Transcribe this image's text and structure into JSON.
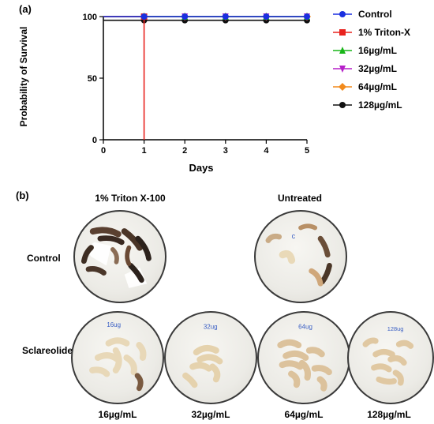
{
  "panel_a_label": "(a)",
  "panel_b_label": "(b)",
  "chart_data": {
    "type": "line",
    "xlabel": "Days",
    "ylabel": "Probability of Survival",
    "xlim": [
      0,
      5
    ],
    "ylim": [
      0,
      100
    ],
    "xticks": [
      "0",
      "1",
      "2",
      "3",
      "4",
      "5"
    ],
    "yticks": [
      "0",
      "50",
      "100"
    ],
    "legend_position": "right",
    "grid": false,
    "series": [
      {
        "name": "Control",
        "color": "#1a2fe0",
        "marker": "circle",
        "x": [
          0,
          1,
          2,
          3,
          4,
          5
        ],
        "y": [
          100,
          100,
          100,
          100,
          100,
          100
        ]
      },
      {
        "name": "1% Triton-X",
        "color": "#e8231e",
        "marker": "square",
        "x": [
          0,
          1,
          1
        ],
        "y": [
          100,
          100,
          0
        ]
      },
      {
        "name": "16µg/mL",
        "color": "#19b519",
        "marker": "triangle-up",
        "x": [
          0,
          1,
          2,
          3,
          4,
          5
        ],
        "y": [
          100,
          100,
          100,
          100,
          100,
          100
        ]
      },
      {
        "name": "32µg/mL",
        "color": "#b51fc9",
        "marker": "triangle-down",
        "x": [
          0,
          1,
          2,
          3,
          4,
          5
        ],
        "y": [
          100,
          100,
          100,
          100,
          100,
          100
        ]
      },
      {
        "name": "64µg/mL",
        "color": "#f28a1c",
        "marker": "diamond",
        "x": [
          0,
          1,
          2,
          3,
          4,
          5
        ],
        "y": [
          100,
          100,
          100,
          100,
          100,
          100
        ]
      },
      {
        "name": "128µg/mL",
        "color": "#111111",
        "marker": "circle",
        "x": [
          0,
          1,
          2,
          3,
          4,
          5
        ],
        "y": [
          97,
          97,
          97,
          97,
          97,
          97
        ]
      }
    ]
  },
  "panel_b": {
    "col_triton": "1% Triton X-100",
    "col_untreated": "Untreated",
    "row_control": "Control",
    "row_sclareolide": "Sclareolide",
    "concentrations": [
      "16µg/mL",
      "32µg/mL",
      "64µg/mL",
      "128µg/mL"
    ]
  }
}
